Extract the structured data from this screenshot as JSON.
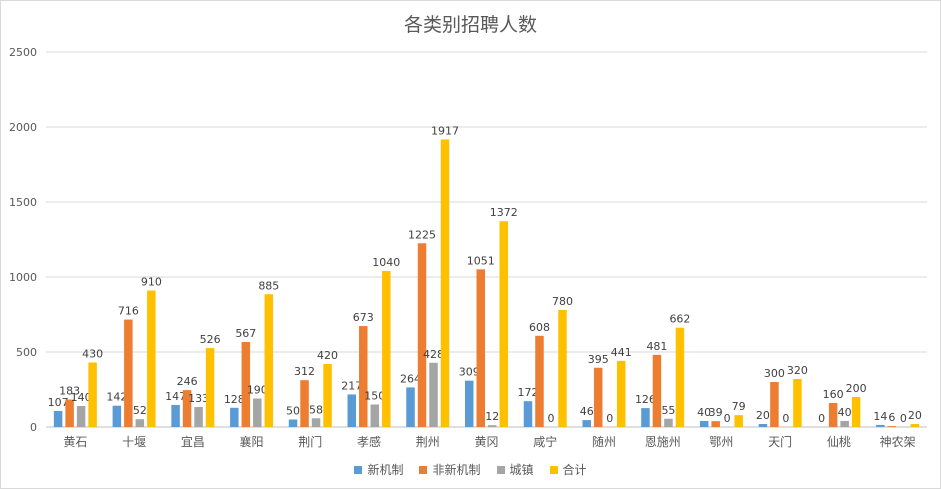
{
  "chart_data": {
    "type": "bar",
    "title": "各类别招聘人数",
    "xlabel": "",
    "ylabel": "",
    "ylim": [
      0,
      2500
    ],
    "yticks": [
      0,
      500,
      1000,
      1500,
      2000,
      2500
    ],
    "grid": true,
    "legend_position": "bottom",
    "categories": [
      "黄石",
      "十堰",
      "宜昌",
      "襄阳",
      "荆门",
      "孝感",
      "荆州",
      "黄冈",
      "咸宁",
      "随州",
      "恩施州",
      "鄂州",
      "天门",
      "仙桃",
      "神农架"
    ],
    "series": [
      {
        "name": "新机制",
        "color": "#5b9bd5",
        "values": [
          107,
          142,
          147,
          128,
          50,
          217,
          264,
          309,
          172,
          46,
          126,
          40,
          20,
          0,
          14
        ]
      },
      {
        "name": "非新机制",
        "color": "#ed7d31",
        "values": [
          183,
          716,
          246,
          567,
          312,
          673,
          1225,
          1051,
          608,
          395,
          481,
          39,
          300,
          160,
          6
        ]
      },
      {
        "name": "城镇",
        "color": "#a5a5a5",
        "values": [
          140,
          52,
          133,
          190,
          58,
          150,
          428,
          12,
          0,
          0,
          55,
          0,
          0,
          40,
          0
        ]
      },
      {
        "name": "合计",
        "color": "#ffc000",
        "values": [
          430,
          910,
          526,
          885,
          420,
          1040,
          1917,
          1372,
          780,
          441,
          662,
          79,
          320,
          200,
          20
        ]
      }
    ]
  }
}
